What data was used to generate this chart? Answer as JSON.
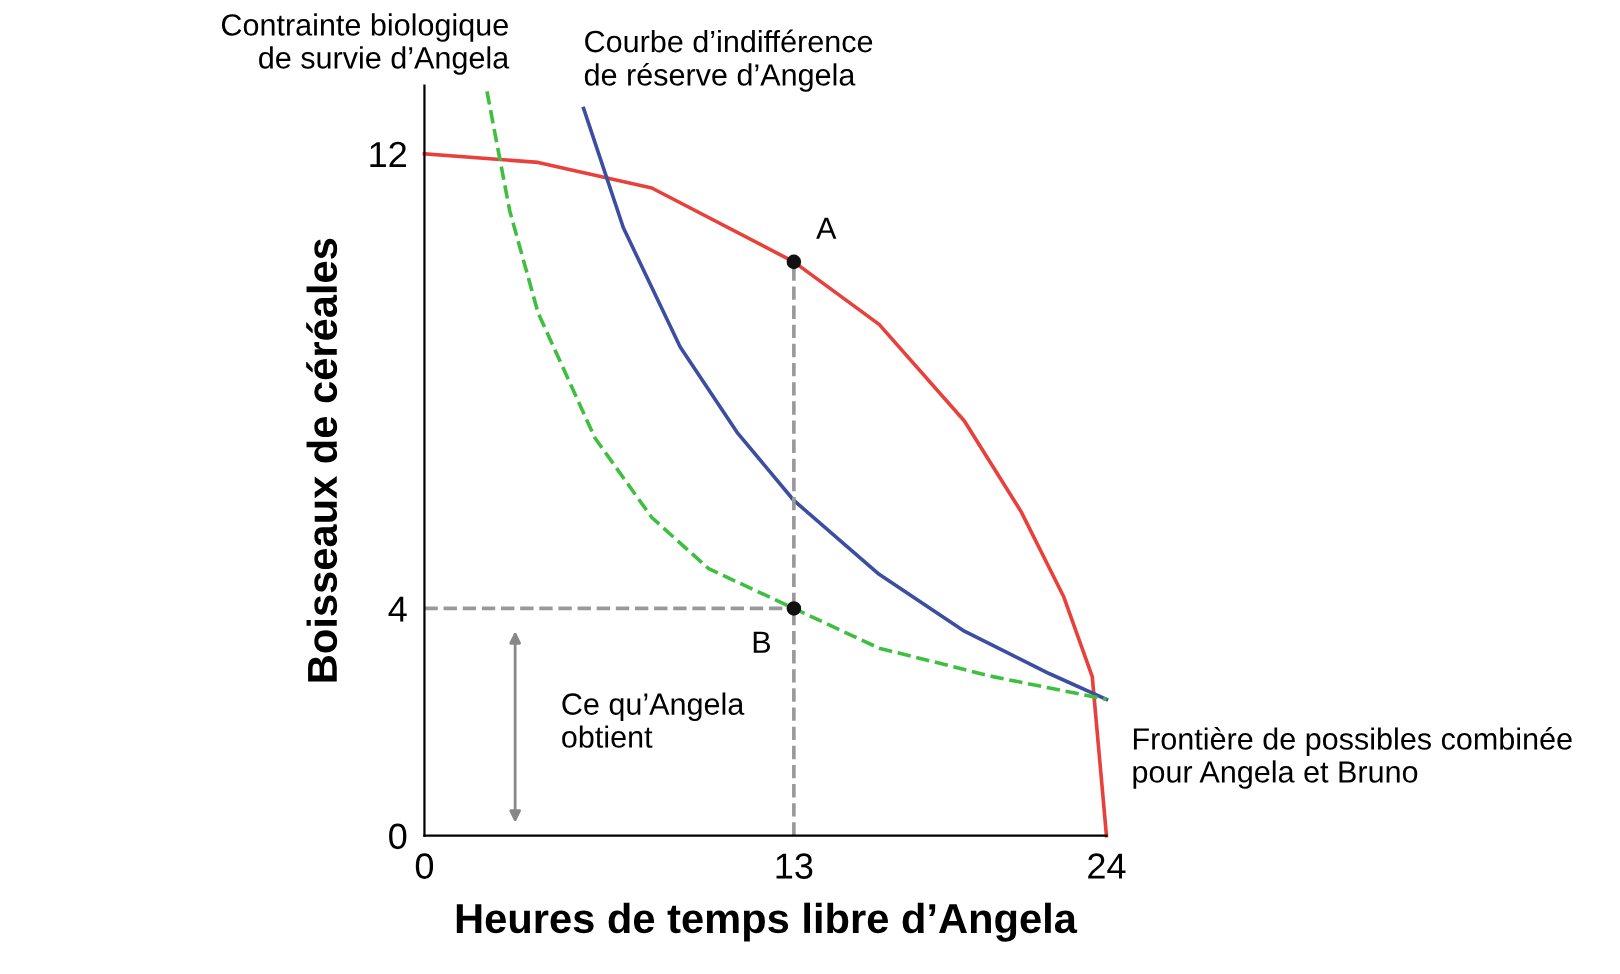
{
  "chart_data": {
    "type": "line",
    "xlabel": "Heures de temps libre d’Angela",
    "ylabel": "Boisseaux de céréales",
    "xlim": [
      0,
      24
    ],
    "ylim": [
      0,
      13.2
    ],
    "xticks": [
      0,
      13,
      24
    ],
    "yticks": [
      0,
      4,
      12
    ],
    "grid": false,
    "legend": false,
    "series": [
      {
        "name": "Frontière de possibles combinée\npour Angela et Bruno",
        "color": "#e8413c",
        "x": [
          0,
          4,
          8,
          13,
          16,
          19,
          21,
          22.5,
          23.5,
          24
        ],
        "values": [
          12,
          11.85,
          11.4,
          10.1,
          9,
          7.3,
          5.7,
          4.2,
          2.8,
          0
        ]
      },
      {
        "name": "Courbe d’indifférence\nde réserve d’Angela",
        "color": "#3c4ea0",
        "x": [
          5.6,
          7,
          9,
          11,
          13,
          16,
          19,
          22,
          24
        ],
        "values": [
          12.8,
          10.7,
          8.6,
          7.1,
          5.9,
          4.6,
          3.6,
          2.85,
          2.4
        ]
      },
      {
        "name": "Contrainte biologique\nde survie d’Angela",
        "color": "#3fbf3f",
        "line_style": "dashed",
        "x": [
          2.2,
          3,
          4,
          6,
          8,
          10,
          13,
          16,
          20,
          24
        ],
        "values": [
          13.1,
          11,
          9.2,
          7,
          5.6,
          4.7,
          4,
          3.3,
          2.8,
          2.4
        ]
      },
      {
        "color": "#999999",
        "line_style": "dashed",
        "x": [
          13,
          13
        ],
        "values": [
          0,
          10.1
        ]
      },
      {
        "color": "#999999",
        "line_style": "dashed",
        "x": [
          0,
          13
        ],
        "values": [
          4,
          4
        ]
      },
      {
        "type": "scatter",
        "color": "#111111",
        "x": [
          13,
          13
        ],
        "values": [
          10.1,
          4
        ]
      }
    ],
    "annotations": [
      "Ce qu’Angela\nobtient",
      {
        "text": "A",
        "x": 13,
        "y": 10.1
      },
      {
        "text": "B",
        "x": 13,
        "y": 4
      }
    ]
  }
}
